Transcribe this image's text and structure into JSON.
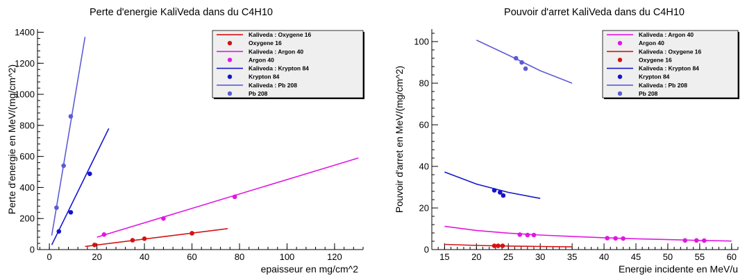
{
  "chart_data": [
    {
      "type": "scatter",
      "title": "Perte d'energie KaliVeda dans du C4H10",
      "xlabel": "epaisseur en mg/cm^2",
      "ylabel": "Perte d'energie en MeV/(mg/cm^2)",
      "xlim": [
        -5,
        132
      ],
      "ylim": [
        0,
        1420
      ],
      "xticks": [
        0,
        20,
        40,
        60,
        80,
        100,
        120
      ],
      "yticks": [
        0,
        200,
        400,
        600,
        800,
        1000,
        1200,
        1400
      ],
      "grid": false,
      "legend_position": "top-right",
      "colors": {
        "oxygen": "#d41212",
        "argon": "#e216e2",
        "krypton": "#1414cc",
        "lead": "#5c5cd6"
      },
      "legend": [
        {
          "label": "Kaliveda : Oxygene 16",
          "kind": "line",
          "color": "oxygen"
        },
        {
          "label": "Oxygene 16",
          "kind": "marker",
          "color": "oxygen"
        },
        {
          "label": "Kaliveda : Argon 40",
          "kind": "line",
          "color": "argon"
        },
        {
          "label": "Argon 40",
          "kind": "marker",
          "color": "argon"
        },
        {
          "label": "Kaliveda : Krypton 84",
          "kind": "line",
          "color": "krypton"
        },
        {
          "label": "Krypton 84",
          "kind": "marker",
          "color": "krypton"
        },
        {
          "label": "Kaliveda : Pb 208",
          "kind": "line",
          "color": "lead"
        },
        {
          "label": "Pb 208",
          "kind": "marker",
          "color": "lead"
        }
      ],
      "series": [
        {
          "name": "Kaliveda : Oxygene 16",
          "kind": "line",
          "color": "oxygen",
          "x": [
            15,
            75
          ],
          "y": [
            20,
            135
          ]
        },
        {
          "name": "Oxygene 16",
          "kind": "marker",
          "color": "oxygen",
          "x": [
            19,
            35,
            40,
            60
          ],
          "y": [
            30,
            60,
            70,
            105
          ]
        },
        {
          "name": "Kaliveda : Argon 40",
          "kind": "line",
          "color": "argon",
          "x": [
            20,
            130
          ],
          "y": [
            80,
            590
          ]
        },
        {
          "name": "Argon 40",
          "kind": "marker",
          "color": "argon",
          "x": [
            23,
            48,
            78
          ],
          "y": [
            97,
            200,
            340
          ]
        },
        {
          "name": "Kaliveda : Krypton 84",
          "kind": "line",
          "color": "krypton",
          "x": [
            1,
            25
          ],
          "y": [
            30,
            780
          ]
        },
        {
          "name": "Krypton 84",
          "kind": "marker",
          "color": "krypton",
          "x": [
            4,
            9,
            17
          ],
          "y": [
            117,
            240,
            488
          ]
        },
        {
          "name": "Kaliveda : Pb 208",
          "kind": "line",
          "color": "lead",
          "x": [
            1,
            15
          ],
          "y": [
            90,
            1370
          ]
        },
        {
          "name": "Pb 208",
          "kind": "marker",
          "color": "lead",
          "x": [
            3,
            6,
            9
          ],
          "y": [
            270,
            540,
            858
          ]
        }
      ]
    },
    {
      "type": "scatter",
      "title": "Pouvoir d'arret KaliVeda dans du C4H10",
      "xlabel": "Energie incidente en MeV/u",
      "ylabel": "Pouvoir d'arret en MeV/(mg/cm^2)",
      "xlim": [
        13,
        61
      ],
      "ylim": [
        0,
        106
      ],
      "xticks": [
        15,
        20,
        25,
        30,
        35,
        40,
        45,
        50,
        55,
        60
      ],
      "yticks": [
        0,
        20,
        40,
        60,
        80,
        100
      ],
      "grid": false,
      "legend_position": "top-right",
      "colors": {
        "oxygen": "#d41212",
        "argon": "#e216e2",
        "krypton": "#1414cc",
        "lead": "#5c5cd6"
      },
      "legend": [
        {
          "label": "Kaliveda : Argon 40",
          "kind": "line",
          "color": "argon"
        },
        {
          "label": "Argon 40",
          "kind": "marker",
          "color": "argon"
        },
        {
          "label": "Kaliveda : Oxygene 16",
          "kind": "line",
          "color": "oxygen"
        },
        {
          "label": "Oxygene 16",
          "kind": "marker",
          "color": "oxygen"
        },
        {
          "label": "Kaliveda : Krypton 84",
          "kind": "line",
          "color": "krypton"
        },
        {
          "label": "Krypton 84",
          "kind": "marker",
          "color": "krypton"
        },
        {
          "label": "Kaliveda : Pb 208",
          "kind": "line",
          "color": "lead"
        },
        {
          "label": "Pb 208",
          "kind": "marker",
          "color": "lead"
        }
      ],
      "series": [
        {
          "name": "Kaliveda : Argon 40",
          "kind": "line",
          "color": "argon",
          "x": [
            15,
            20,
            25,
            30,
            35,
            40,
            45,
            50,
            55,
            60
          ],
          "y": [
            11.2,
            9.2,
            7.9,
            7.0,
            6.3,
            5.7,
            5.2,
            4.8,
            4.4,
            4.1
          ]
        },
        {
          "name": "Argon 40",
          "kind": "marker",
          "color": "argon",
          "x": [
            26.8,
            28,
            29,
            40.5,
            41.8,
            43,
            52.7,
            54.5,
            55.7
          ],
          "y": [
            7.2,
            7.0,
            7.0,
            5.5,
            5.4,
            5.3,
            4.4,
            4.4,
            4.3
          ]
        },
        {
          "name": "Kaliveda : Oxygene 16",
          "kind": "line",
          "color": "oxygen",
          "x": [
            15,
            20,
            25,
            30,
            35
          ],
          "y": [
            2.5,
            2.0,
            1.7,
            1.5,
            1.3
          ]
        },
        {
          "name": "Oxygene 16",
          "kind": "marker",
          "color": "oxygen",
          "x": [
            22.8,
            23.4,
            24.1
          ],
          "y": [
            1.8,
            1.8,
            1.8
          ]
        },
        {
          "name": "Kaliveda : Krypton 84",
          "kind": "line",
          "color": "krypton",
          "x": [
            15,
            20,
            25,
            30
          ],
          "y": [
            37.3,
            31.5,
            27.5,
            24.6
          ]
        },
        {
          "name": "Krypton 84",
          "kind": "marker",
          "color": "krypton",
          "x": [
            22.8,
            23.7,
            24.2
          ],
          "y": [
            28.5,
            27.5,
            26.0
          ]
        },
        {
          "name": "Kaliveda : Pb 208",
          "kind": "line",
          "color": "lead",
          "x": [
            20,
            25,
            30,
            35
          ],
          "y": [
            100.7,
            93.5,
            86.0,
            80.0
          ]
        },
        {
          "name": "Pb 208",
          "kind": "marker",
          "color": "lead",
          "x": [
            26.2,
            27.1,
            27.7
          ],
          "y": [
            92,
            90,
            87
          ]
        }
      ]
    }
  ]
}
